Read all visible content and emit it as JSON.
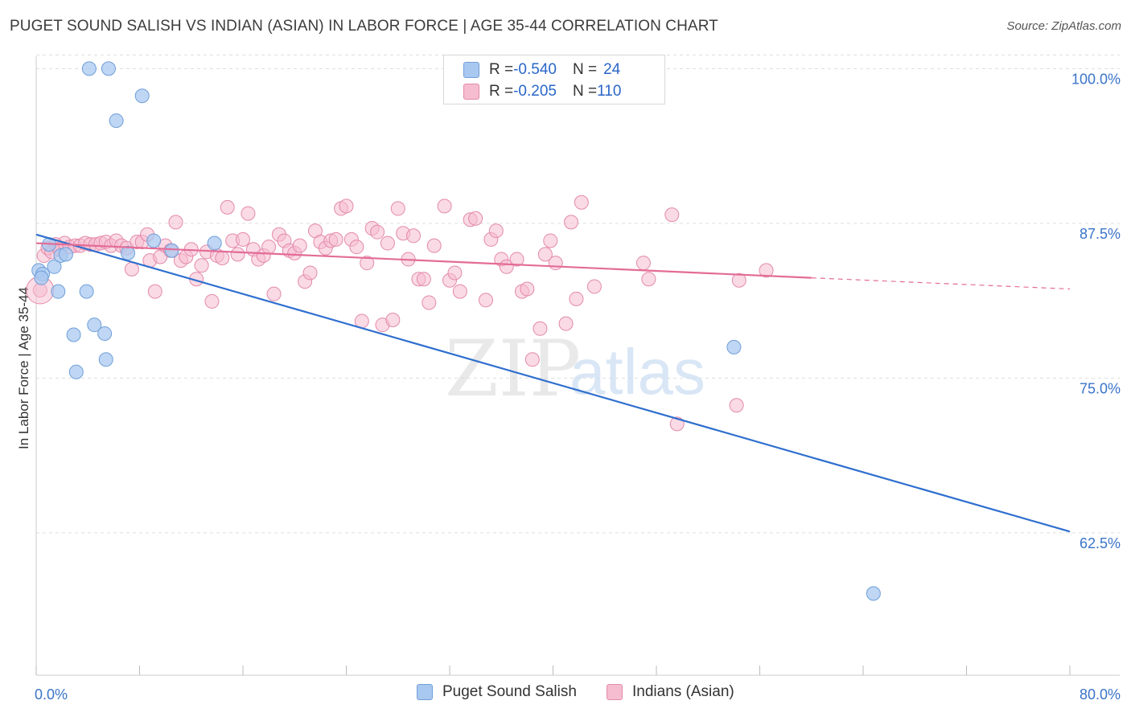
{
  "header": {
    "title": "PUGET SOUND SALISH VS INDIAN (ASIAN) IN LABOR FORCE | AGE 35-44 CORRELATION CHART",
    "source": "Source: ZipAtlas.com"
  },
  "legend_top": {
    "rows": [
      {
        "r_label": "R = ",
        "r_value": "-0.540",
        "n_label": "N = ",
        "n_value": "24"
      },
      {
        "r_label": "R = ",
        "r_value": "-0.205",
        "n_label": "N = ",
        "n_value": "110"
      }
    ]
  },
  "legend_bottom": {
    "items": [
      "Puget Sound Salish",
      "Indians (Asian)"
    ]
  },
  "colors": {
    "blue_fill": "#a9c8f0",
    "blue_stroke": "#6f9fd8",
    "blue_line": "#2f6fce",
    "pink_fill": "#f6bcd0",
    "pink_stroke": "#e38aab",
    "pink_line": "#e36c96",
    "tick_text": "#3a74c9",
    "grid": "#dddddd"
  },
  "chart_data": {
    "type": "scatter",
    "title": "PUGET SOUND SALISH VS INDIAN (ASIAN) IN LABOR FORCE | AGE 35-44 CORRELATION CHART",
    "ylabel": "In Labor Force | Age 35-44",
    "xlabel": "",
    "xlim": [
      0,
      80
    ],
    "ylim": [
      51,
      101
    ],
    "x_tick_labels": [
      "0.0%",
      "80.0%"
    ],
    "y_ticks": [
      62.5,
      75.0,
      87.5,
      100.0
    ],
    "y_tick_labels": [
      "62.5%",
      "75.0%",
      "87.5%",
      "100.0%"
    ],
    "grid": true,
    "legend_position": "top-center",
    "watermark": "ZIPatlas",
    "series": [
      {
        "name": "Puget Sound Salish",
        "color": "#a9c8f0",
        "points": [
          [
            0.2,
            83.7
          ],
          [
            0.5,
            83.4
          ],
          [
            1.0,
            85.8
          ],
          [
            1.4,
            84.0
          ],
          [
            1.9,
            84.9
          ],
          [
            2.3,
            85.0
          ],
          [
            1.7,
            82.0
          ],
          [
            3.9,
            82.0
          ],
          [
            2.9,
            78.5
          ],
          [
            4.5,
            79.3
          ],
          [
            5.3,
            78.6
          ],
          [
            5.4,
            76.5
          ],
          [
            3.1,
            75.5
          ],
          [
            4.1,
            100.0
          ],
          [
            5.6,
            100.0
          ],
          [
            6.2,
            95.8
          ],
          [
            8.2,
            97.8
          ],
          [
            7.1,
            85.1
          ],
          [
            9.1,
            86.1
          ],
          [
            10.5,
            85.3
          ],
          [
            13.8,
            85.9
          ],
          [
            0.4,
            83.1
          ],
          [
            54.0,
            77.5
          ],
          [
            64.8,
            57.6
          ]
        ],
        "trend": {
          "x0": 0,
          "y0": 86.6,
          "x1": 80,
          "y1": 62.6
        }
      },
      {
        "name": "Indians (Asian)",
        "color": "#f6bcd0",
        "points": [
          [
            0.3,
            82.1
          ],
          [
            0.6,
            84.9
          ],
          [
            0.9,
            85.5
          ],
          [
            1.2,
            85.2
          ],
          [
            1.5,
            85.8
          ],
          [
            1.8,
            85.4
          ],
          [
            2.2,
            85.9
          ],
          [
            2.6,
            85.6
          ],
          [
            3.0,
            85.7
          ],
          [
            3.4,
            85.7
          ],
          [
            3.8,
            85.9
          ],
          [
            4.2,
            85.8
          ],
          [
            4.6,
            85.8
          ],
          [
            5.0,
            85.9
          ],
          [
            5.4,
            86.0
          ],
          [
            5.8,
            85.7
          ],
          [
            6.2,
            86.1
          ],
          [
            6.6,
            85.7
          ],
          [
            7.0,
            85.5
          ],
          [
            7.4,
            83.8
          ],
          [
            7.8,
            86.0
          ],
          [
            8.2,
            86.0
          ],
          [
            8.6,
            86.6
          ],
          [
            8.8,
            84.5
          ],
          [
            9.2,
            82.0
          ],
          [
            9.6,
            84.8
          ],
          [
            10.0,
            85.7
          ],
          [
            10.4,
            85.3
          ],
          [
            10.8,
            87.6
          ],
          [
            11.2,
            84.5
          ],
          [
            11.6,
            84.8
          ],
          [
            12.0,
            85.4
          ],
          [
            12.4,
            83.0
          ],
          [
            12.8,
            84.1
          ],
          [
            13.2,
            85.2
          ],
          [
            13.6,
            81.2
          ],
          [
            14.0,
            84.9
          ],
          [
            14.4,
            84.7
          ],
          [
            14.8,
            88.8
          ],
          [
            15.2,
            86.1
          ],
          [
            15.6,
            85.0
          ],
          [
            16.0,
            86.2
          ],
          [
            16.4,
            88.3
          ],
          [
            16.8,
            85.4
          ],
          [
            17.2,
            84.6
          ],
          [
            17.6,
            84.9
          ],
          [
            18.0,
            85.6
          ],
          [
            18.4,
            81.8
          ],
          [
            18.8,
            86.6
          ],
          [
            19.2,
            86.1
          ],
          [
            19.6,
            85.3
          ],
          [
            20.0,
            85.1
          ],
          [
            20.4,
            85.7
          ],
          [
            20.8,
            82.8
          ],
          [
            21.2,
            83.5
          ],
          [
            21.6,
            86.9
          ],
          [
            22.0,
            86.0
          ],
          [
            22.4,
            85.5
          ],
          [
            22.8,
            86.1
          ],
          [
            23.2,
            86.2
          ],
          [
            23.6,
            88.7
          ],
          [
            24.0,
            88.9
          ],
          [
            24.4,
            86.2
          ],
          [
            24.8,
            85.6
          ],
          [
            25.2,
            79.6
          ],
          [
            25.6,
            84.3
          ],
          [
            26.0,
            87.1
          ],
          [
            26.4,
            86.8
          ],
          [
            26.8,
            79.3
          ],
          [
            27.2,
            85.9
          ],
          [
            27.6,
            79.7
          ],
          [
            28.0,
            88.7
          ],
          [
            28.4,
            86.7
          ],
          [
            28.8,
            84.6
          ],
          [
            29.2,
            86.5
          ],
          [
            29.6,
            83.0
          ],
          [
            30.0,
            83.0
          ],
          [
            30.4,
            81.1
          ],
          [
            30.8,
            85.7
          ],
          [
            31.6,
            88.9
          ],
          [
            32.0,
            82.9
          ],
          [
            32.4,
            83.5
          ],
          [
            32.8,
            82.0
          ],
          [
            33.6,
            87.8
          ],
          [
            34.0,
            87.9
          ],
          [
            34.8,
            81.3
          ],
          [
            35.2,
            86.2
          ],
          [
            35.6,
            86.9
          ],
          [
            36.0,
            84.6
          ],
          [
            36.4,
            84.0
          ],
          [
            37.2,
            84.6
          ],
          [
            37.6,
            82.0
          ],
          [
            38.0,
            82.2
          ],
          [
            38.4,
            76.5
          ],
          [
            39.0,
            79.0
          ],
          [
            39.4,
            85.0
          ],
          [
            39.8,
            86.1
          ],
          [
            40.2,
            84.3
          ],
          [
            41.0,
            79.4
          ],
          [
            41.4,
            87.6
          ],
          [
            41.8,
            81.4
          ],
          [
            42.2,
            89.2
          ],
          [
            43.2,
            82.4
          ],
          [
            47.0,
            84.3
          ],
          [
            47.4,
            83.0
          ],
          [
            49.2,
            88.2
          ],
          [
            49.6,
            71.3
          ],
          [
            54.2,
            72.8
          ],
          [
            54.4,
            82.9
          ],
          [
            56.5,
            83.7
          ]
        ],
        "trend": {
          "x0": 0,
          "y0": 85.9,
          "x1": 60,
          "y1": 83.1
        },
        "trend_dashed_to": {
          "x": 80,
          "y": 82.2
        }
      }
    ]
  }
}
